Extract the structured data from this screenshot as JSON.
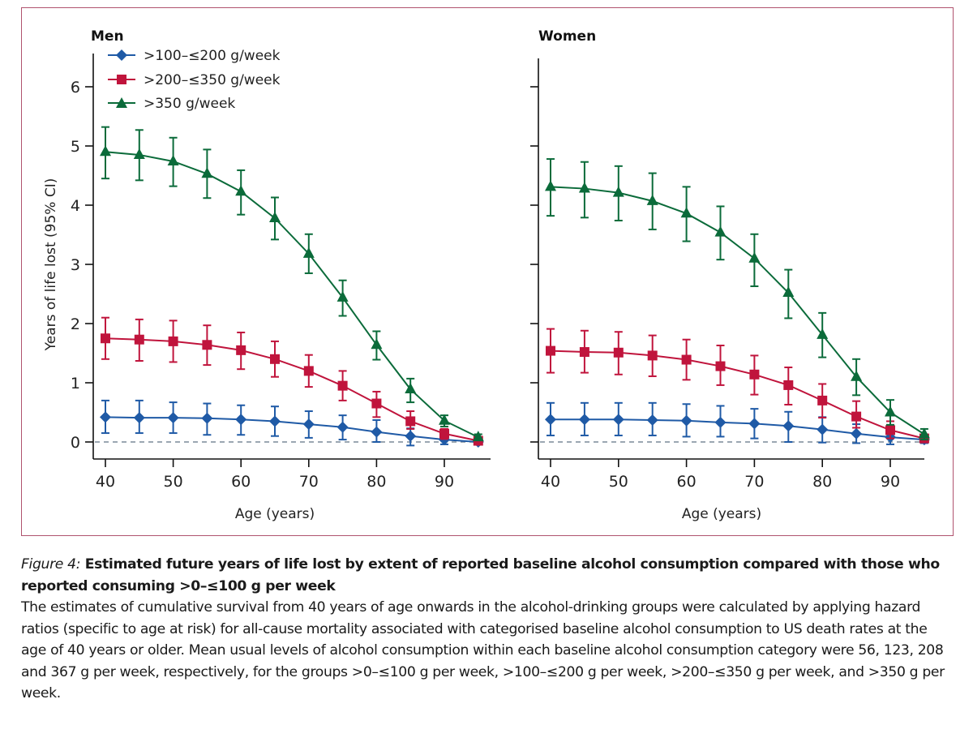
{
  "chart_data": [
    {
      "type": "line",
      "title": "Men",
      "xlabel": "Age (years)",
      "ylabel": "Years of life lost (95% CI)",
      "xlim": [
        38,
        97
      ],
      "ylim": [
        -0.3,
        6.5
      ],
      "xticks": [
        40,
        50,
        60,
        70,
        80,
        90
      ],
      "yticks": [
        0,
        1,
        2,
        3,
        4,
        5,
        6
      ],
      "reference_line": {
        "y": 0,
        "style": "dashed"
      },
      "legend_position": "top-left",
      "x": [
        40,
        45,
        50,
        55,
        60,
        65,
        70,
        75,
        80,
        85,
        90,
        95
      ],
      "series": [
        {
          "name": ">100–≤200 g/week",
          "color": "#1f5aa6",
          "marker": "diamond",
          "values": [
            0.42,
            0.41,
            0.41,
            0.4,
            0.38,
            0.35,
            0.3,
            0.25,
            0.17,
            0.1,
            0.04,
            0.0
          ],
          "ci_upper": [
            0.7,
            0.7,
            0.67,
            0.65,
            0.62,
            0.6,
            0.52,
            0.45,
            0.37,
            0.23,
            0.11,
            0.02
          ],
          "ci_lower": [
            0.15,
            0.15,
            0.15,
            0.12,
            0.12,
            0.1,
            0.07,
            0.04,
            0.0,
            -0.06,
            -0.04,
            -0.03
          ]
        },
        {
          "name": ">200–≤350 g/week",
          "color": "#c0143c",
          "marker": "square",
          "values": [
            1.75,
            1.73,
            1.7,
            1.64,
            1.55,
            1.4,
            1.2,
            0.95,
            0.65,
            0.35,
            0.14,
            0.02
          ],
          "ci_upper": [
            2.1,
            2.07,
            2.05,
            1.97,
            1.85,
            1.7,
            1.47,
            1.2,
            0.85,
            0.52,
            0.22,
            0.05
          ],
          "ci_lower": [
            1.4,
            1.37,
            1.35,
            1.3,
            1.23,
            1.1,
            0.93,
            0.7,
            0.42,
            0.22,
            0.05,
            -0.01
          ]
        },
        {
          "name": ">350 g/week",
          "color": "#0b6b3a",
          "marker": "triangle",
          "values": [
            4.9,
            4.85,
            4.74,
            4.53,
            4.23,
            3.78,
            3.18,
            2.44,
            1.64,
            0.89,
            0.36,
            0.08
          ],
          "ci_upper": [
            5.32,
            5.27,
            5.14,
            4.94,
            4.59,
            4.13,
            3.51,
            2.73,
            1.87,
            1.07,
            0.45,
            0.13
          ],
          "ci_lower": [
            4.45,
            4.42,
            4.32,
            4.12,
            3.84,
            3.42,
            2.85,
            2.13,
            1.39,
            0.67,
            0.26,
            0.04
          ]
        }
      ]
    },
    {
      "type": "line",
      "title": "Women",
      "xlabel": "Age (years)",
      "ylabel": "",
      "xlim": [
        38,
        97
      ],
      "ylim": [
        -0.3,
        6.5
      ],
      "xticks": [
        40,
        50,
        60,
        70,
        80,
        90
      ],
      "yticks": [
        0,
        1,
        2,
        3,
        4,
        5,
        6
      ],
      "reference_line": {
        "y": 0,
        "style": "dashed"
      },
      "x": [
        40,
        45,
        50,
        55,
        60,
        65,
        70,
        75,
        80,
        85,
        90,
        95
      ],
      "series": [
        {
          "name": ">100–≤200 g/week",
          "color": "#1f5aa6",
          "marker": "diamond",
          "values": [
            0.38,
            0.38,
            0.38,
            0.37,
            0.36,
            0.33,
            0.31,
            0.27,
            0.21,
            0.14,
            0.08,
            0.04
          ],
          "ci_upper": [
            0.66,
            0.66,
            0.66,
            0.66,
            0.64,
            0.61,
            0.56,
            0.51,
            0.42,
            0.3,
            0.18,
            0.09
          ],
          "ci_lower": [
            0.11,
            0.11,
            0.11,
            0.11,
            0.09,
            0.09,
            0.06,
            0.0,
            -0.01,
            -0.02,
            -0.04,
            -0.02
          ]
        },
        {
          "name": ">200–≤350 g/week",
          "color": "#c0143c",
          "marker": "square",
          "values": [
            1.54,
            1.52,
            1.51,
            1.46,
            1.39,
            1.28,
            1.14,
            0.96,
            0.7,
            0.43,
            0.2,
            0.06
          ],
          "ci_upper": [
            1.91,
            1.88,
            1.86,
            1.8,
            1.73,
            1.63,
            1.46,
            1.26,
            0.98,
            0.69,
            0.35,
            0.12
          ],
          "ci_lower": [
            1.17,
            1.17,
            1.14,
            1.11,
            1.05,
            0.96,
            0.8,
            0.63,
            0.41,
            0.24,
            0.06,
            0.0
          ]
        },
        {
          "name": ">350 g/week",
          "color": "#0b6b3a",
          "marker": "triangle",
          "values": [
            4.31,
            4.28,
            4.21,
            4.07,
            3.86,
            3.54,
            3.1,
            2.52,
            1.81,
            1.1,
            0.5,
            0.13
          ],
          "ci_upper": [
            4.78,
            4.73,
            4.66,
            4.54,
            4.31,
            3.98,
            3.51,
            2.91,
            2.18,
            1.4,
            0.71,
            0.22
          ],
          "ci_lower": [
            3.82,
            3.79,
            3.74,
            3.59,
            3.39,
            3.08,
            2.63,
            2.09,
            1.43,
            0.79,
            0.29,
            0.04
          ]
        }
      ]
    }
  ],
  "caption": {
    "label": "Figure 4:",
    "title": " Estimated future years of life lost by extent of reported baseline alcohol consumption compared with those who reported consuming >0–≤100 g per week",
    "body": "The estimates of cumulative survival from 40 years of age onwards in the alcohol-drinking groups were calculated by applying hazard ratios (specific to age at risk) for all-cause mortality associated with categorised baseline alcohol consumption to US death rates at the age of 40 years or older. Mean usual levels of alcohol consumption within each baseline alcohol consumption category were 56, 123, 208 and 367 g per week, respectively, for the groups >0–≤100 g per week, >100–≤200 g per week, >200–≤350 g per week, and >350 g per week."
  },
  "colors": {
    "frame_border": "#b0536e",
    "reference_line": "#7a8a99"
  }
}
